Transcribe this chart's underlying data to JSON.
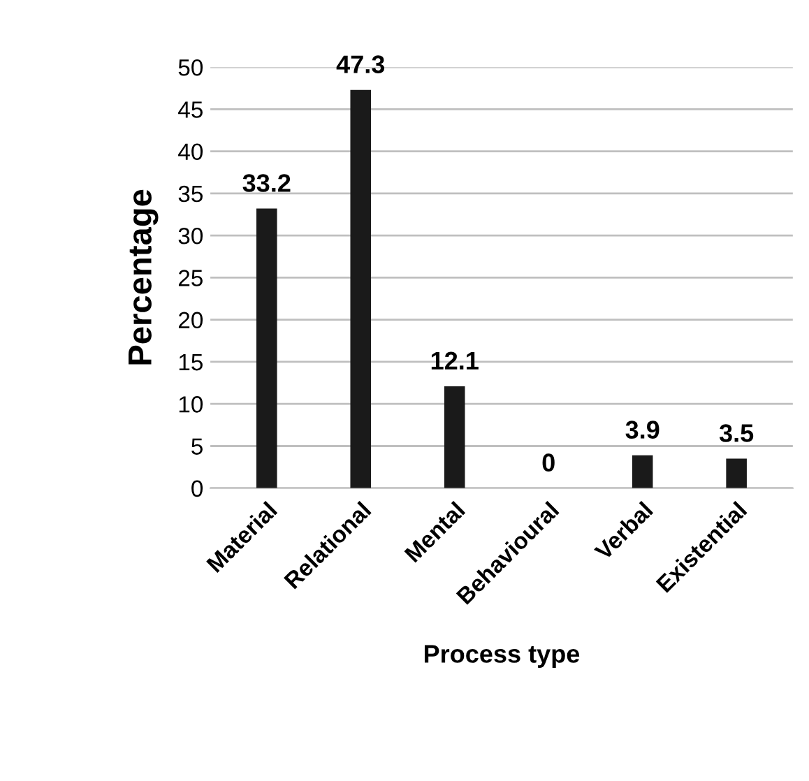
{
  "chart_data": {
    "type": "bar",
    "xlabel": "Process type",
    "ylabel": "Percentage",
    "categories": [
      "Material",
      "Relational",
      "Mental",
      "Behavioural",
      "Verbal",
      "Existential"
    ],
    "values": [
      33.2,
      47.3,
      12.1,
      0,
      3.9,
      3.5
    ],
    "color": "#1a1a1a",
    "ylim": [
      0,
      50
    ],
    "yticks": [
      0,
      5,
      10,
      15,
      20,
      25,
      30,
      35,
      40,
      45,
      50
    ],
    "grid": "y",
    "data_labels": true
  }
}
